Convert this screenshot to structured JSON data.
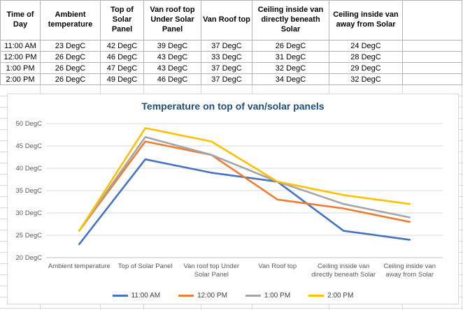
{
  "table": {
    "columns": [
      "Time of Day",
      "Ambient temperature",
      "Top of Solar Panel",
      "Van roof top Under Solar Panel",
      "Van Roof top",
      "Ceiling inside van directly beneath Solar",
      "Ceiling inside van away from Solar"
    ],
    "rows": [
      [
        "11:00 AM",
        "23 DegC",
        "42 DegC",
        "39 DegC",
        "37 DegC",
        "26 DegC",
        "24 DegC"
      ],
      [
        "12:00 PM",
        "26 DegC",
        "46 DegC",
        "43 DegC",
        "33 DegC",
        "31 DegC",
        "28 DegC"
      ],
      [
        "1:00 PM",
        "26 DegC",
        "47 DegC",
        "43 DegC",
        "37 DegC",
        "32 DegC",
        "29 DegC"
      ],
      [
        "2:00 PM",
        "26 DegC",
        "49 DegC",
        "46 DegC",
        "37 DegC",
        "34 DegC",
        "32 DegC"
      ]
    ]
  },
  "chart_data": {
    "type": "line",
    "title": "Temperature on top of van/solar panels",
    "title_color": "#1F4E79",
    "categories": [
      "Ambient temperature",
      "Top of Solar Panel",
      "Van roof top Under Solar Panel",
      "Van Roof top",
      "Ceiling inside van directly beneath Solar",
      "Ceiling inside van away from Solar"
    ],
    "series": [
      {
        "name": "11:00 AM",
        "color": "#4472C4",
        "values": [
          23,
          42,
          39,
          37,
          26,
          24
        ]
      },
      {
        "name": "12:00 PM",
        "color": "#ED7D31",
        "values": [
          26,
          46,
          43,
          33,
          31,
          28
        ]
      },
      {
        "name": "1:00 PM",
        "color": "#A5A5A5",
        "values": [
          26,
          47,
          43,
          37,
          32,
          29
        ]
      },
      {
        "name": "2:00 PM",
        "color": "#FFC000",
        "values": [
          26,
          49,
          46,
          37,
          34,
          32
        ]
      }
    ],
    "ylim": [
      20,
      50
    ],
    "ytick_step": 5,
    "ytick_suffix": " DegC",
    "xlabel": "",
    "ylabel": "",
    "grid": true,
    "legend_position": "bottom"
  },
  "colors": {
    "sheet_gridline": "#d9d9d9",
    "chart_gridline": "#d9d9d9",
    "axis_line": "#bfbfbf",
    "tick_text": "#595959"
  }
}
